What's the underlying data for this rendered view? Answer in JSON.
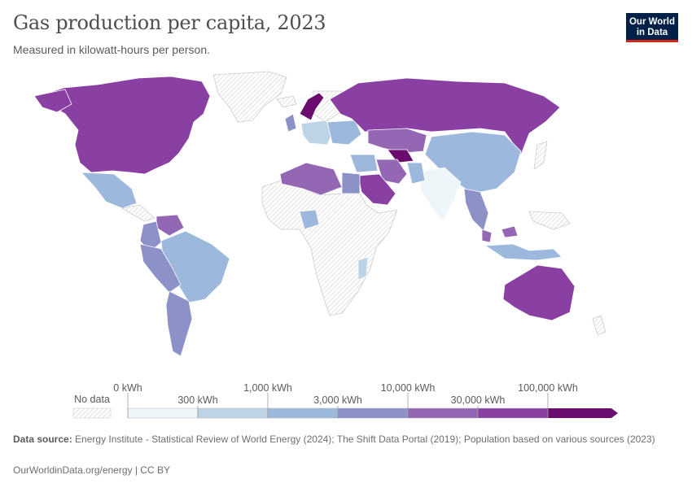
{
  "title": "Gas production per capita, 2023",
  "subtitle": "Measured in kilowatt-hours per person.",
  "logo": {
    "line1": "Our World",
    "line2": "in Data"
  },
  "legend": {
    "no_data_label": "No data",
    "upper_labels": [
      "0 kWh",
      "1,000 kWh",
      "10,000 kWh",
      "100,000 kWh"
    ],
    "lower_labels": [
      "300 kWh",
      "3,000 kWh",
      "30,000 kWh"
    ],
    "bins": [
      {
        "from": "0 kWh",
        "to": "300 kWh",
        "color": "#eef6f9"
      },
      {
        "from": "300 kWh",
        "to": "1,000 kWh",
        "color": "#bdd3e6"
      },
      {
        "from": "1,000 kWh",
        "to": "3,000 kWh",
        "color": "#9cb8dc"
      },
      {
        "from": "3,000 kWh",
        "to": "10,000 kWh",
        "color": "#8c92c8"
      },
      {
        "from": "10,000 kWh",
        "to": "30,000 kWh",
        "color": "#9467b4"
      },
      {
        "from": "30,000 kWh",
        "to": "100,000 kWh",
        "color": "#8a3fa3"
      },
      {
        "from": "100,000 kWh",
        "to": "",
        "color": "#6b0d6e"
      }
    ]
  },
  "colors": {
    "no_data_hatch": "#d0d0d0",
    "land_stroke": "#ffffff",
    "logo_bg": "#002147",
    "logo_accent": "#ce261e"
  },
  "source": {
    "label": "Data source:",
    "text": "Energy Institute - Statistical Review of World Energy (2024); The Shift Data Portal (2019); Population based on various sources (2023)"
  },
  "footer": "OurWorldinData.org/energy | CC BY"
}
